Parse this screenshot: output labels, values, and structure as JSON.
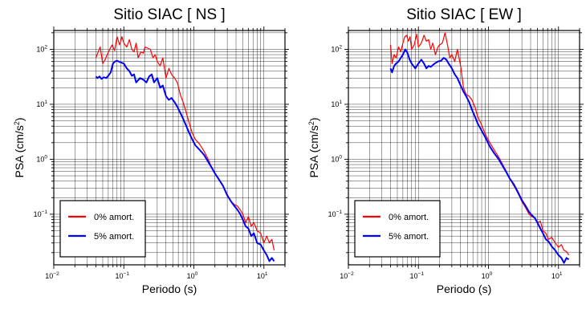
{
  "chart_data": [
    {
      "type": "line",
      "title": "Sitio SIAC [ NS ]",
      "xlabel": "Periodo (s)",
      "ylabel_main": "PSA (cm/s",
      "ylabel_sup": "2",
      "ylabel_end": ")",
      "xscale": "log",
      "yscale": "log",
      "xlim": [
        0.01,
        20
      ],
      "ylim": [
        0.012,
        220
      ],
      "grid": true,
      "legend_placement": "lower-left",
      "x_ticks": [
        {
          "base": "10",
          "exp": "−2"
        },
        {
          "base": "10",
          "exp": "−1"
        },
        {
          "base": "10",
          "exp": "0"
        },
        {
          "base": "10",
          "exp": "1"
        }
      ],
      "y_ticks": [
        {
          "base": "10",
          "exp": "−1"
        },
        {
          "base": "10",
          "exp": "0"
        },
        {
          "base": "10",
          "exp": "1"
        },
        {
          "base": "10",
          "exp": "2"
        }
      ],
      "series": [
        {
          "name": "0% amort.",
          "color": "#ff0000",
          "x": [
            0.04,
            0.043,
            0.046,
            0.05,
            0.054,
            0.058,
            0.063,
            0.068,
            0.074,
            0.08,
            0.087,
            0.094,
            0.1,
            0.11,
            0.12,
            0.13,
            0.14,
            0.15,
            0.16,
            0.175,
            0.19,
            0.2,
            0.22,
            0.24,
            0.26,
            0.28,
            0.3,
            0.33,
            0.36,
            0.4,
            0.44,
            0.48,
            0.53,
            0.58,
            0.64,
            0.7,
            0.78,
            0.86,
            0.95,
            1.05,
            1.2,
            1.4,
            1.6,
            1.8,
            2.0,
            2.3,
            2.6,
            3.0,
            3.4,
            3.8,
            4.2,
            4.6,
            5.0,
            5.5,
            6.0,
            6.6,
            7.2,
            8.0,
            9.0,
            10.0,
            11.0,
            12.0,
            13.0,
            14.0
          ],
          "values": [
            70,
            90,
            110,
            55,
            65,
            80,
            100,
            120,
            95,
            170,
            120,
            170,
            130,
            110,
            150,
            100,
            90,
            130,
            70,
            90,
            85,
            110,
            105,
            100,
            70,
            80,
            60,
            50,
            70,
            30,
            45,
            35,
            30,
            25,
            15,
            11,
            7,
            4.5,
            3,
            2.3,
            1.9,
            1.4,
            1.0,
            0.7,
            0.55,
            0.42,
            0.33,
            0.23,
            0.17,
            0.15,
            0.14,
            0.12,
            0.1,
            0.07,
            0.09,
            0.06,
            0.07,
            0.05,
            0.045,
            0.03,
            0.04,
            0.03,
            0.035,
            0.022
          ]
        },
        {
          "name": "5% amort.",
          "color": "#0000ff",
          "x": [
            0.04,
            0.042,
            0.045,
            0.048,
            0.052,
            0.056,
            0.06,
            0.065,
            0.07,
            0.075,
            0.08,
            0.09,
            0.1,
            0.11,
            0.12,
            0.13,
            0.14,
            0.15,
            0.17,
            0.19,
            0.21,
            0.23,
            0.25,
            0.27,
            0.3,
            0.33,
            0.36,
            0.4,
            0.44,
            0.48,
            0.53,
            0.58,
            0.64,
            0.7,
            0.78,
            0.86,
            0.95,
            1.05,
            1.2,
            1.4,
            1.6,
            1.8,
            2.0,
            2.3,
            2.6,
            3.0,
            3.4,
            3.8,
            4.2,
            4.6,
            5.0,
            5.5,
            6.0,
            6.6,
            7.2,
            8.0,
            9.0,
            10.0,
            11.0,
            12.0,
            13.0,
            14.0
          ],
          "values": [
            32,
            30,
            32,
            29,
            31,
            30,
            33,
            38,
            55,
            60,
            62,
            58,
            55,
            45,
            40,
            33,
            35,
            25,
            30,
            28,
            25,
            32,
            35,
            25,
            30,
            20,
            22,
            14,
            12,
            13,
            11,
            9,
            7,
            5.5,
            4.0,
            3.0,
            2.3,
            1.8,
            1.5,
            1.2,
            0.9,
            0.7,
            0.55,
            0.42,
            0.33,
            0.22,
            0.17,
            0.14,
            0.12,
            0.1,
            0.08,
            0.06,
            0.055,
            0.04,
            0.045,
            0.03,
            0.028,
            0.022,
            0.018,
            0.014,
            0.016,
            0.014
          ]
        }
      ]
    },
    {
      "type": "line",
      "title": "Sitio SIAC [ EW ]",
      "xlabel": "Periodo (s)",
      "ylabel_main": "PSA (cm/s",
      "ylabel_sup": "2",
      "ylabel_end": ")",
      "xscale": "log",
      "yscale": "log",
      "xlim": [
        0.01,
        20
      ],
      "ylim": [
        0.012,
        220
      ],
      "grid": true,
      "legend_placement": "lower-left",
      "x_ticks": [
        {
          "base": "10",
          "exp": "−2"
        },
        {
          "base": "10",
          "exp": "−1"
        },
        {
          "base": "10",
          "exp": "0"
        },
        {
          "base": "10",
          "exp": "1"
        }
      ],
      "y_ticks": [
        {
          "base": "10",
          "exp": "−1"
        },
        {
          "base": "10",
          "exp": "0"
        },
        {
          "base": "10",
          "exp": "1"
        },
        {
          "base": "10",
          "exp": "2"
        }
      ],
      "series": [
        {
          "name": "0% amort.",
          "color": "#ff0000",
          "x": [
            0.04,
            0.042,
            0.045,
            0.048,
            0.052,
            0.056,
            0.06,
            0.064,
            0.068,
            0.072,
            0.076,
            0.08,
            0.087,
            0.095,
            0.1,
            0.11,
            0.12,
            0.13,
            0.14,
            0.15,
            0.16,
            0.175,
            0.19,
            0.2,
            0.22,
            0.24,
            0.26,
            0.28,
            0.3,
            0.33,
            0.36,
            0.4,
            0.44,
            0.48,
            0.53,
            0.58,
            0.64,
            0.7,
            0.78,
            0.86,
            0.95,
            1.05,
            1.2,
            1.4,
            1.6,
            1.8,
            2.0,
            2.3,
            2.6,
            3.0,
            3.4,
            3.8,
            4.2,
            4.6,
            5.0,
            5.5,
            6.0,
            6.6,
            7.2,
            8.0,
            9.0,
            10.0,
            11.0,
            12.0,
            13.0,
            14.0
          ],
          "values": [
            120,
            55,
            80,
            70,
            110,
            90,
            130,
            170,
            180,
            140,
            170,
            100,
            120,
            190,
            110,
            130,
            180,
            140,
            150,
            100,
            130,
            80,
            110,
            120,
            130,
            200,
            120,
            70,
            80,
            60,
            100,
            50,
            20,
            15,
            14,
            12,
            9,
            6,
            4.5,
            3.3,
            2.5,
            2.0,
            1.5,
            1.1,
            0.8,
            0.6,
            0.45,
            0.33,
            0.25,
            0.17,
            0.13,
            0.1,
            0.09,
            0.085,
            0.07,
            0.075,
            0.05,
            0.045,
            0.035,
            0.038,
            0.03,
            0.025,
            0.028,
            0.022,
            0.021,
            0.018
          ]
        },
        {
          "name": "5% amort.",
          "color": "#0000ff",
          "x": [
            0.04,
            0.042,
            0.045,
            0.048,
            0.052,
            0.056,
            0.06,
            0.065,
            0.07,
            0.075,
            0.08,
            0.09,
            0.1,
            0.11,
            0.12,
            0.13,
            0.14,
            0.15,
            0.17,
            0.19,
            0.21,
            0.23,
            0.25,
            0.27,
            0.3,
            0.33,
            0.36,
            0.4,
            0.44,
            0.48,
            0.53,
            0.58,
            0.64,
            0.7,
            0.78,
            0.86,
            0.95,
            1.05,
            1.2,
            1.4,
            1.6,
            1.8,
            2.0,
            2.3,
            2.6,
            3.0,
            3.4,
            3.8,
            4.2,
            4.6,
            5.0,
            5.5,
            6.0,
            6.6,
            7.2,
            8.0,
            9.0,
            10.0,
            11.0,
            12.0,
            13.0,
            14.0
          ],
          "values": [
            45,
            38,
            50,
            55,
            60,
            70,
            80,
            100,
            85,
            65,
            55,
            45,
            55,
            65,
            55,
            45,
            50,
            48,
            55,
            60,
            62,
            70,
            65,
            55,
            45,
            35,
            30,
            22,
            17,
            14,
            11,
            8,
            6,
            4.5,
            3.5,
            2.8,
            2.2,
            1.7,
            1.3,
            1.0,
            0.75,
            0.58,
            0.45,
            0.35,
            0.26,
            0.18,
            0.14,
            0.11,
            0.095,
            0.085,
            0.07,
            0.055,
            0.045,
            0.035,
            0.032,
            0.026,
            0.022,
            0.018,
            0.016,
            0.013,
            0.016,
            0.015
          ]
        }
      ]
    }
  ]
}
